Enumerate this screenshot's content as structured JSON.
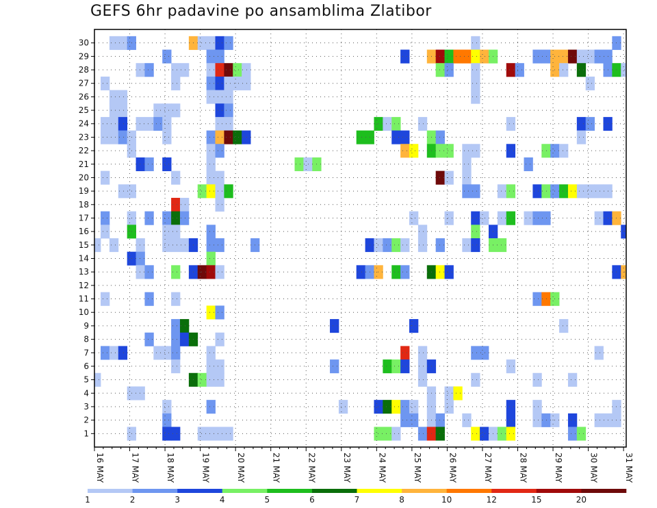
{
  "chart_data": {
    "type": "heatmap",
    "title": "GEFS 6hr padavine po ansamblima Zlatibor",
    "xlabel": "",
    "ylabel": "",
    "members": [
      1,
      2,
      3,
      4,
      5,
      6,
      7,
      8,
      9,
      10,
      11,
      12,
      13,
      14,
      15,
      16,
      17,
      18,
      19,
      20,
      21,
      22,
      23,
      24,
      25,
      26,
      27,
      28,
      29,
      30
    ],
    "x_ticks": [
      "16 MAY",
      "17 MAY",
      "18 MAY",
      "19 MAY",
      "20 MAY",
      "21 MAY",
      "22 MAY",
      "23 MAY",
      "24 MAY",
      "25 MAY",
      "26 MAY",
      "27 MAY",
      "28 MAY",
      "29 MAY",
      "30 MAY",
      "31 MAY"
    ],
    "steps_per_day": 4,
    "n_steps": 61,
    "grid": true,
    "colorbar": {
      "position": "bottom",
      "levels": [
        "1",
        "2",
        "3",
        "4",
        "5",
        "6",
        "7",
        "8",
        "10",
        "12",
        "15",
        "20"
      ],
      "colors": [
        "#b4c8f5",
        "#6e96f0",
        "#1e46dc",
        "#78f064",
        "#1ebe1e",
        "#0a6e0a",
        "#ffff00",
        "#ffb43c",
        "#ff7800",
        "#e12814",
        "#a00a0a",
        "#6e0a0a"
      ]
    },
    "cells": [
      [
        30,
        2,
        0
      ],
      [
        30,
        3,
        0
      ],
      [
        30,
        4,
        1
      ],
      [
        30,
        11,
        7
      ],
      [
        30,
        12,
        0
      ],
      [
        30,
        13,
        0
      ],
      [
        30,
        14,
        2
      ],
      [
        30,
        15,
        1
      ],
      [
        30,
        43,
        0
      ],
      [
        30,
        59,
        1
      ],
      [
        29,
        8,
        1
      ],
      [
        29,
        13,
        1
      ],
      [
        29,
        14,
        1
      ],
      [
        29,
        35,
        2
      ],
      [
        29,
        38,
        7
      ],
      [
        29,
        39,
        10
      ],
      [
        29,
        40,
        4
      ],
      [
        29,
        41,
        8
      ],
      [
        29,
        42,
        8
      ],
      [
        29,
        43,
        6
      ],
      [
        29,
        44,
        7
      ],
      [
        29,
        45,
        3
      ],
      [
        29,
        50,
        1
      ],
      [
        29,
        51,
        1
      ],
      [
        29,
        52,
        7
      ],
      [
        29,
        53,
        7
      ],
      [
        29,
        54,
        11
      ],
      [
        29,
        55,
        0
      ],
      [
        29,
        56,
        0
      ],
      [
        29,
        57,
        1
      ],
      [
        29,
        58,
        1
      ],
      [
        28,
        5,
        0
      ],
      [
        28,
        6,
        1
      ],
      [
        28,
        9,
        0
      ],
      [
        28,
        10,
        0
      ],
      [
        28,
        13,
        0
      ],
      [
        28,
        14,
        9
      ],
      [
        28,
        15,
        11
      ],
      [
        28,
        16,
        3
      ],
      [
        28,
        17,
        0
      ],
      [
        28,
        39,
        3
      ],
      [
        28,
        40,
        1
      ],
      [
        28,
        43,
        0
      ],
      [
        28,
        47,
        10
      ],
      [
        28,
        48,
        1
      ],
      [
        28,
        52,
        7
      ],
      [
        28,
        53,
        0
      ],
      [
        28,
        55,
        5
      ],
      [
        28,
        58,
        1
      ],
      [
        28,
        59,
        4
      ],
      [
        28,
        60,
        0
      ],
      [
        27,
        1,
        0
      ],
      [
        27,
        9,
        0
      ],
      [
        27,
        13,
        1
      ],
      [
        27,
        14,
        2
      ],
      [
        27,
        15,
        0
      ],
      [
        27,
        16,
        0
      ],
      [
        27,
        17,
        0
      ],
      [
        27,
        43,
        0
      ],
      [
        27,
        56,
        0
      ],
      [
        26,
        2,
        0
      ],
      [
        26,
        3,
        0
      ],
      [
        26,
        13,
        0
      ],
      [
        26,
        14,
        0
      ],
      [
        26,
        15,
        0
      ],
      [
        26,
        43,
        0
      ],
      [
        25,
        2,
        0
      ],
      [
        25,
        3,
        0
      ],
      [
        25,
        7,
        0
      ],
      [
        25,
        8,
        0
      ],
      [
        25,
        9,
        0
      ],
      [
        25,
        14,
        2
      ],
      [
        25,
        15,
        1
      ],
      [
        24,
        1,
        0
      ],
      [
        24,
        2,
        0
      ],
      [
        24,
        3,
        2
      ],
      [
        24,
        5,
        0
      ],
      [
        24,
        6,
        0
      ],
      [
        24,
        7,
        1
      ],
      [
        24,
        8,
        0
      ],
      [
        24,
        14,
        0
      ],
      [
        24,
        15,
        0
      ],
      [
        24,
        32,
        4
      ],
      [
        24,
        33,
        0
      ],
      [
        24,
        34,
        3
      ],
      [
        24,
        37,
        0
      ],
      [
        24,
        47,
        0
      ],
      [
        24,
        55,
        2
      ],
      [
        24,
        56,
        1
      ],
      [
        24,
        58,
        2
      ],
      [
        23,
        1,
        0
      ],
      [
        23,
        2,
        0
      ],
      [
        23,
        3,
        1
      ],
      [
        23,
        4,
        0
      ],
      [
        23,
        8,
        0
      ],
      [
        23,
        13,
        1
      ],
      [
        23,
        14,
        7
      ],
      [
        23,
        15,
        11
      ],
      [
        23,
        16,
        5
      ],
      [
        23,
        17,
        2
      ],
      [
        23,
        30,
        4
      ],
      [
        23,
        31,
        4
      ],
      [
        23,
        34,
        2
      ],
      [
        23,
        35,
        2
      ],
      [
        23,
        38,
        3
      ],
      [
        23,
        39,
        1
      ],
      [
        23,
        55,
        0
      ],
      [
        22,
        4,
        0
      ],
      [
        22,
        13,
        0
      ],
      [
        22,
        14,
        1
      ],
      [
        22,
        35,
        7
      ],
      [
        22,
        36,
        6
      ],
      [
        22,
        38,
        4
      ],
      [
        22,
        39,
        3
      ],
      [
        22,
        40,
        3
      ],
      [
        22,
        42,
        0
      ],
      [
        22,
        43,
        0
      ],
      [
        22,
        47,
        2
      ],
      [
        22,
        51,
        3
      ],
      [
        22,
        52,
        1
      ],
      [
        22,
        53,
        0
      ],
      [
        21,
        5,
        2
      ],
      [
        21,
        6,
        1
      ],
      [
        21,
        8,
        2
      ],
      [
        21,
        13,
        0
      ],
      [
        21,
        23,
        3
      ],
      [
        21,
        24,
        0
      ],
      [
        21,
        25,
        3
      ],
      [
        21,
        42,
        0
      ],
      [
        21,
        49,
        1
      ],
      [
        20,
        1,
        0
      ],
      [
        20,
        9,
        0
      ],
      [
        20,
        13,
        0
      ],
      [
        20,
        14,
        0
      ],
      [
        20,
        39,
        11
      ],
      [
        20,
        40,
        0
      ],
      [
        20,
        42,
        0
      ],
      [
        19,
        3,
        0
      ],
      [
        19,
        4,
        0
      ],
      [
        19,
        12,
        3
      ],
      [
        19,
        13,
        6
      ],
      [
        19,
        14,
        0
      ],
      [
        19,
        15,
        4
      ],
      [
        19,
        42,
        1
      ],
      [
        19,
        43,
        1
      ],
      [
        19,
        46,
        0
      ],
      [
        19,
        47,
        3
      ],
      [
        19,
        50,
        2
      ],
      [
        19,
        51,
        3
      ],
      [
        19,
        52,
        1
      ],
      [
        19,
        53,
        4
      ],
      [
        19,
        54,
        6
      ],
      [
        19,
        55,
        0
      ],
      [
        19,
        56,
        0
      ],
      [
        19,
        57,
        0
      ],
      [
        19,
        58,
        0
      ],
      [
        18,
        9,
        9
      ],
      [
        18,
        10,
        0
      ],
      [
        18,
        14,
        0
      ],
      [
        17,
        1,
        1
      ],
      [
        17,
        4,
        0
      ],
      [
        17,
        6,
        1
      ],
      [
        17,
        8,
        1
      ],
      [
        17,
        9,
        5
      ],
      [
        17,
        10,
        1
      ],
      [
        17,
        36,
        0
      ],
      [
        17,
        40,
        0
      ],
      [
        17,
        43,
        2
      ],
      [
        17,
        44,
        0
      ],
      [
        17,
        46,
        0
      ],
      [
        17,
        47,
        4
      ],
      [
        17,
        49,
        0
      ],
      [
        17,
        50,
        1
      ],
      [
        17,
        51,
        1
      ],
      [
        17,
        57,
        0
      ],
      [
        17,
        58,
        2
      ],
      [
        17,
        59,
        7
      ],
      [
        16,
        1,
        0
      ],
      [
        16,
        4,
        4
      ],
      [
        16,
        8,
        0
      ],
      [
        16,
        9,
        0
      ],
      [
        16,
        13,
        1
      ],
      [
        16,
        37,
        0
      ],
      [
        16,
        43,
        3
      ],
      [
        16,
        45,
        2
      ],
      [
        16,
        60,
        2
      ],
      [
        15,
        0,
        0
      ],
      [
        15,
        2,
        0
      ],
      [
        15,
        5,
        0
      ],
      [
        15,
        8,
        0
      ],
      [
        15,
        9,
        0
      ],
      [
        15,
        10,
        0
      ],
      [
        15,
        11,
        2
      ],
      [
        15,
        13,
        1
      ],
      [
        15,
        14,
        1
      ],
      [
        15,
        18,
        1
      ],
      [
        15,
        31,
        2
      ],
      [
        15,
        32,
        0
      ],
      [
        15,
        33,
        1
      ],
      [
        15,
        34,
        3
      ],
      [
        15,
        35,
        0
      ],
      [
        15,
        37,
        0
      ],
      [
        15,
        39,
        1
      ],
      [
        15,
        42,
        0
      ],
      [
        15,
        43,
        2
      ],
      [
        15,
        45,
        3
      ],
      [
        15,
        46,
        3
      ],
      [
        14,
        4,
        2
      ],
      [
        14,
        5,
        1
      ],
      [
        14,
        13,
        3
      ],
      [
        13,
        5,
        0
      ],
      [
        13,
        6,
        1
      ],
      [
        13,
        9,
        3
      ],
      [
        13,
        11,
        2
      ],
      [
        13,
        12,
        11
      ],
      [
        13,
        13,
        10
      ],
      [
        13,
        14,
        0
      ],
      [
        13,
        30,
        2
      ],
      [
        13,
        31,
        1
      ],
      [
        13,
        32,
        7
      ],
      [
        13,
        34,
        4
      ],
      [
        13,
        35,
        1
      ],
      [
        13,
        38,
        5
      ],
      [
        13,
        39,
        6
      ],
      [
        13,
        40,
        2
      ],
      [
        13,
        59,
        2
      ],
      [
        13,
        60,
        7
      ],
      [
        11,
        1,
        0
      ],
      [
        11,
        6,
        1
      ],
      [
        11,
        9,
        0
      ],
      [
        11,
        50,
        1
      ],
      [
        11,
        51,
        8
      ],
      [
        11,
        52,
        3
      ],
      [
        10,
        13,
        6
      ],
      [
        10,
        14,
        1
      ],
      [
        9,
        9,
        1
      ],
      [
        9,
        10,
        5
      ],
      [
        9,
        27,
        2
      ],
      [
        9,
        36,
        2
      ],
      [
        9,
        53,
        0
      ],
      [
        8,
        6,
        1
      ],
      [
        8,
        9,
        1
      ],
      [
        8,
        10,
        2
      ],
      [
        8,
        11,
        5
      ],
      [
        8,
        14,
        0
      ],
      [
        7,
        1,
        1
      ],
      [
        7,
        2,
        0
      ],
      [
        7,
        3,
        2
      ],
      [
        7,
        7,
        0
      ],
      [
        7,
        8,
        0
      ],
      [
        7,
        9,
        1
      ],
      [
        7,
        13,
        0
      ],
      [
        7,
        35,
        9
      ],
      [
        7,
        37,
        0
      ],
      [
        7,
        43,
        1
      ],
      [
        7,
        44,
        1
      ],
      [
        7,
        57,
        0
      ],
      [
        6,
        9,
        0
      ],
      [
        6,
        13,
        0
      ],
      [
        6,
        14,
        0
      ],
      [
        6,
        27,
        1
      ],
      [
        6,
        33,
        4
      ],
      [
        6,
        34,
        3
      ],
      [
        6,
        35,
        2
      ],
      [
        6,
        37,
        0
      ],
      [
        6,
        38,
        2
      ],
      [
        6,
        47,
        0
      ],
      [
        5,
        0,
        0
      ],
      [
        5,
        11,
        5
      ],
      [
        5,
        12,
        3
      ],
      [
        5,
        13,
        0
      ],
      [
        5,
        14,
        0
      ],
      [
        5,
        37,
        0
      ],
      [
        5,
        43,
        0
      ],
      [
        5,
        50,
        0
      ],
      [
        5,
        54,
        0
      ],
      [
        4,
        4,
        0
      ],
      [
        4,
        5,
        0
      ],
      [
        4,
        38,
        0
      ],
      [
        4,
        40,
        0
      ],
      [
        4,
        41,
        6
      ],
      [
        3,
        8,
        0
      ],
      [
        3,
        13,
        1
      ],
      [
        3,
        28,
        0
      ],
      [
        3,
        32,
        2
      ],
      [
        3,
        33,
        5
      ],
      [
        3,
        34,
        6
      ],
      [
        3,
        35,
        1
      ],
      [
        3,
        36,
        0
      ],
      [
        3,
        38,
        0
      ],
      [
        3,
        40,
        0
      ],
      [
        3,
        47,
        2
      ],
      [
        3,
        50,
        0
      ],
      [
        3,
        59,
        0
      ],
      [
        2,
        8,
        1
      ],
      [
        2,
        35,
        1
      ],
      [
        2,
        36,
        1
      ],
      [
        2,
        38,
        0
      ],
      [
        2,
        39,
        1
      ],
      [
        2,
        42,
        0
      ],
      [
        2,
        47,
        2
      ],
      [
        2,
        50,
        0
      ],
      [
        2,
        51,
        1
      ],
      [
        2,
        52,
        0
      ],
      [
        2,
        54,
        2
      ],
      [
        2,
        57,
        0
      ],
      [
        2,
        58,
        0
      ],
      [
        2,
        59,
        0
      ],
      [
        1,
        4,
        0
      ],
      [
        1,
        8,
        2
      ],
      [
        1,
        9,
        2
      ],
      [
        1,
        12,
        0
      ],
      [
        1,
        13,
        0
      ],
      [
        1,
        14,
        0
      ],
      [
        1,
        15,
        0
      ],
      [
        1,
        32,
        3
      ],
      [
        1,
        33,
        3
      ],
      [
        1,
        34,
        0
      ],
      [
        1,
        37,
        1
      ],
      [
        1,
        38,
        9
      ],
      [
        1,
        39,
        5
      ],
      [
        1,
        43,
        6
      ],
      [
        1,
        44,
        2
      ],
      [
        1,
        45,
        0
      ],
      [
        1,
        46,
        3
      ],
      [
        1,
        47,
        6
      ],
      [
        1,
        54,
        1
      ],
      [
        1,
        55,
        3
      ]
    ]
  }
}
